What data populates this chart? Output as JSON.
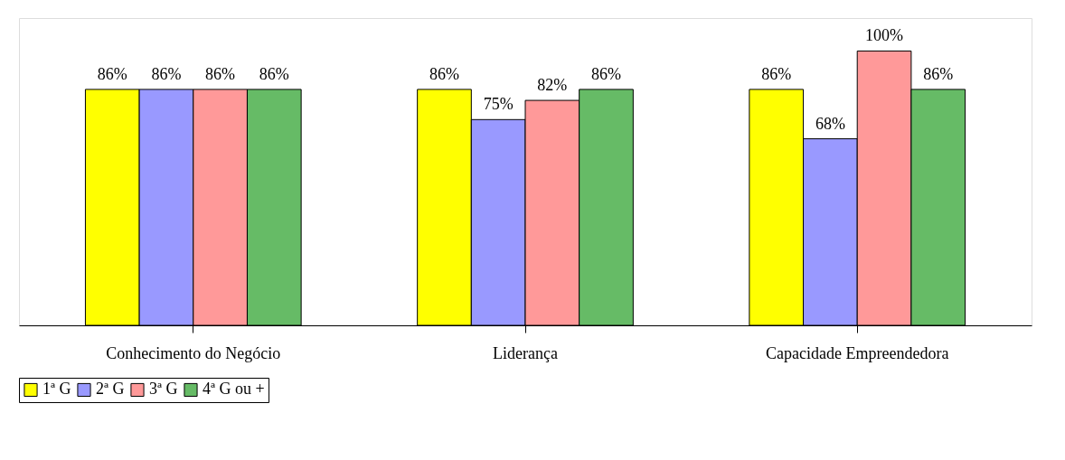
{
  "chart_data": {
    "type": "bar",
    "categories": [
      "Conhecimento do Negócio",
      "Liderança",
      "Capacidade Empreendedora"
    ],
    "series": [
      {
        "name": "1ª G",
        "color": "#ffff00",
        "values": [
          86,
          86,
          86
        ],
        "value_labels": [
          "86%",
          "86%",
          "86%"
        ]
      },
      {
        "name": "2ª G",
        "color": "#9999ff",
        "values": [
          86,
          75,
          68
        ],
        "value_labels": [
          "86%",
          "75%",
          "68%"
        ]
      },
      {
        "name": "3ª G",
        "color": "#ff9999",
        "values": [
          86,
          82,
          100
        ],
        "value_labels": [
          "86%",
          "82%",
          "100%"
        ]
      },
      {
        "name": "4ª G ou +",
        "color": "#66bb66",
        "values": [
          86,
          86,
          86
        ],
        "value_labels": [
          "86%",
          "86%",
          "86%"
        ]
      }
    ],
    "grid": false,
    "legend": "bottom",
    "tick_labels": "x"
  }
}
